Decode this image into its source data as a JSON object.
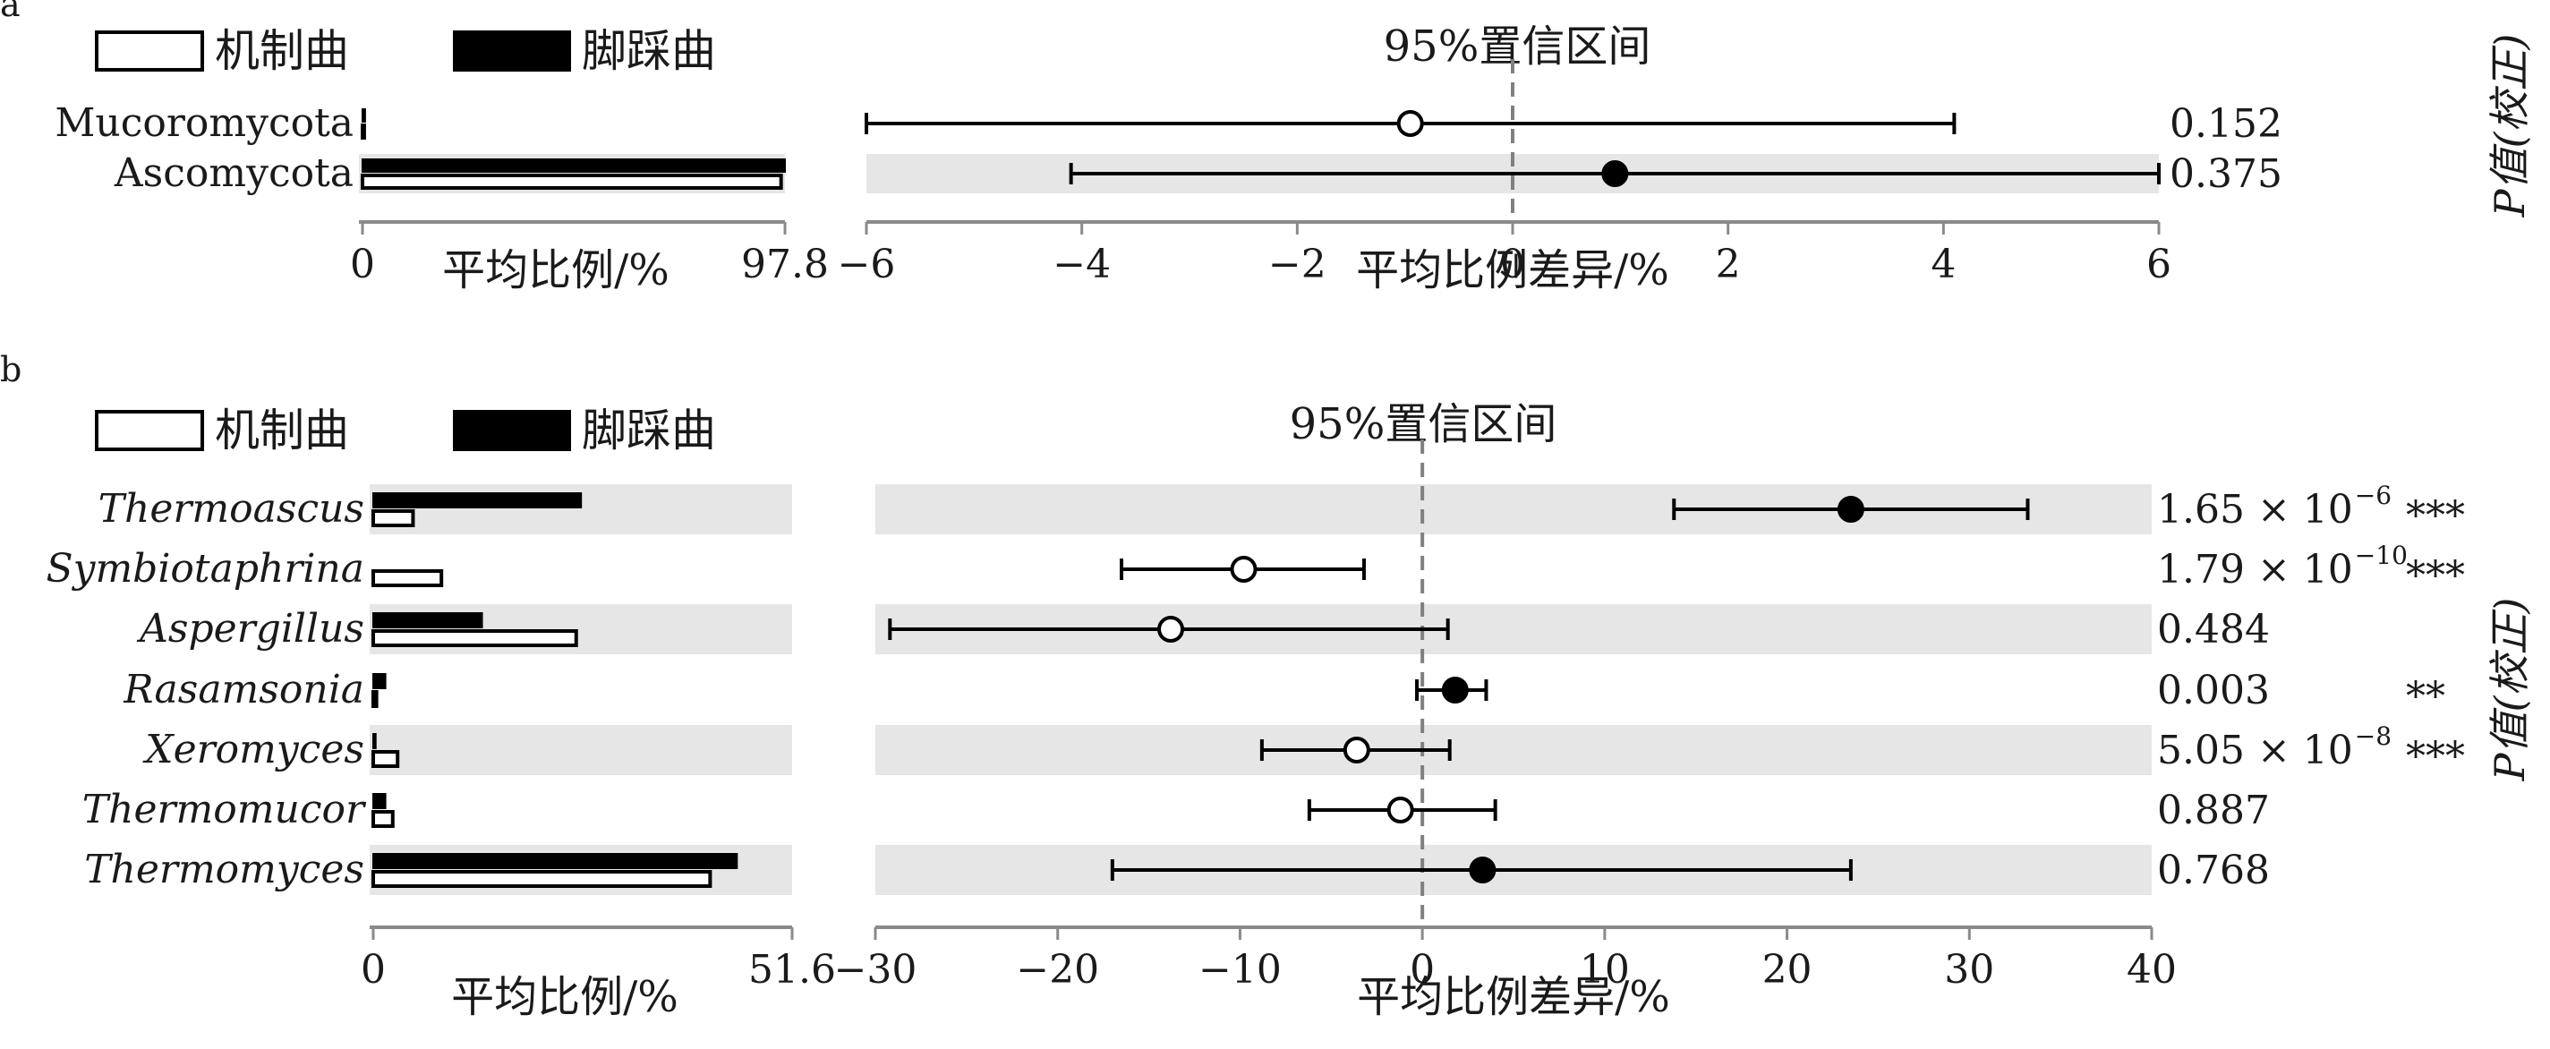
{
  "legend": {
    "label_a": "机制曲",
    "label_b": "脚踩曲"
  },
  "ci_label": "95%置信区间",
  "p_axis_label": "P值(校正)",
  "xlabel_mean": "平均比例/%",
  "xlabel_diff": "平均比例差异/%",
  "colors": {
    "group_a": "#ffffff",
    "group_b": "#000000",
    "stripe": "#e6e6e6",
    "zero_line": "#808080"
  },
  "chart_data": [
    {
      "panel": "a",
      "type": "bar+errorbar",
      "categories": [
        "Mucoromycota",
        "Ascomycota"
      ],
      "italic_categories": false,
      "bar_series": [
        {
          "name": "机制曲",
          "values": [
            0.4,
            96.9
          ]
        },
        {
          "name": "脚踩曲",
          "values": [
            0.6,
            97.8
          ]
        }
      ],
      "bar_ticks": [
        "0",
        "97.8"
      ],
      "bar_xlim": [
        0,
        97.8
      ],
      "diff": [
        {
          "mean": -0.95,
          "low": -6.0,
          "high": 4.1,
          "filled": false
        },
        {
          "mean": 0.95,
          "low": -4.1,
          "high": 6.0,
          "filled": true
        }
      ],
      "diff_xlim": [
        -6,
        6
      ],
      "diff_ticks": [
        "−6",
        "−4",
        "−2",
        "0",
        "2",
        "4",
        "6"
      ],
      "p_values": [
        "0.152",
        "0.375"
      ],
      "significance": [
        "",
        ""
      ],
      "stripes": [
        false,
        true
      ]
    },
    {
      "panel": "b",
      "type": "bar+errorbar",
      "categories": [
        "Thermoascus",
        "Symbiotaphrina",
        "Aspergillus",
        "Rasamsonia",
        "Xeromyces",
        "Thermomucor",
        "Thermomyces"
      ],
      "italic_categories": true,
      "bar_series": [
        {
          "name": "机制曲",
          "values": [
            4.9,
            8.4,
            25.0,
            0.4,
            3.0,
            2.4,
            41.5
          ]
        },
        {
          "name": "脚踩曲",
          "values": [
            25.6,
            0.0,
            13.4,
            1.5,
            0.3,
            1.5,
            44.8
          ]
        }
      ],
      "bar_ticks": [
        "0",
        "51.6"
      ],
      "bar_xlim": [
        0,
        51.6
      ],
      "diff": [
        {
          "mean": 23.5,
          "low": 13.8,
          "high": 33.2,
          "filled": true
        },
        {
          "mean": -9.8,
          "low": -16.5,
          "high": -3.2,
          "filled": false
        },
        {
          "mean": -13.8,
          "low": -29.2,
          "high": 1.4,
          "filled": false
        },
        {
          "mean": 1.8,
          "low": -0.3,
          "high": 3.5,
          "filled": true
        },
        {
          "mean": -3.6,
          "low": -8.8,
          "high": 1.5,
          "filled": false
        },
        {
          "mean": -1.2,
          "low": -6.2,
          "high": 4.0,
          "filled": false
        },
        {
          "mean": 3.3,
          "low": -17.0,
          "high": 23.5,
          "filled": true
        }
      ],
      "diff_xlim": [
        -30,
        40
      ],
      "diff_ticks": [
        "−30",
        "−20",
        "−10",
        "0",
        "10",
        "20",
        "30",
        "40"
      ],
      "p_values": [
        "1.65 × 10",
        "1.79 × 10",
        "0.484",
        "0.003",
        "5.05 × 10",
        "0.887",
        "0.768"
      ],
      "p_exponents": [
        "−6",
        "−10",
        "",
        "",
        "−8",
        "",
        ""
      ],
      "significance": [
        "***",
        "***",
        "",
        "**",
        "***",
        "",
        ""
      ],
      "stripes": [
        true,
        false,
        true,
        false,
        true,
        false,
        true
      ]
    }
  ],
  "panel_labels": [
    "a",
    "b"
  ]
}
